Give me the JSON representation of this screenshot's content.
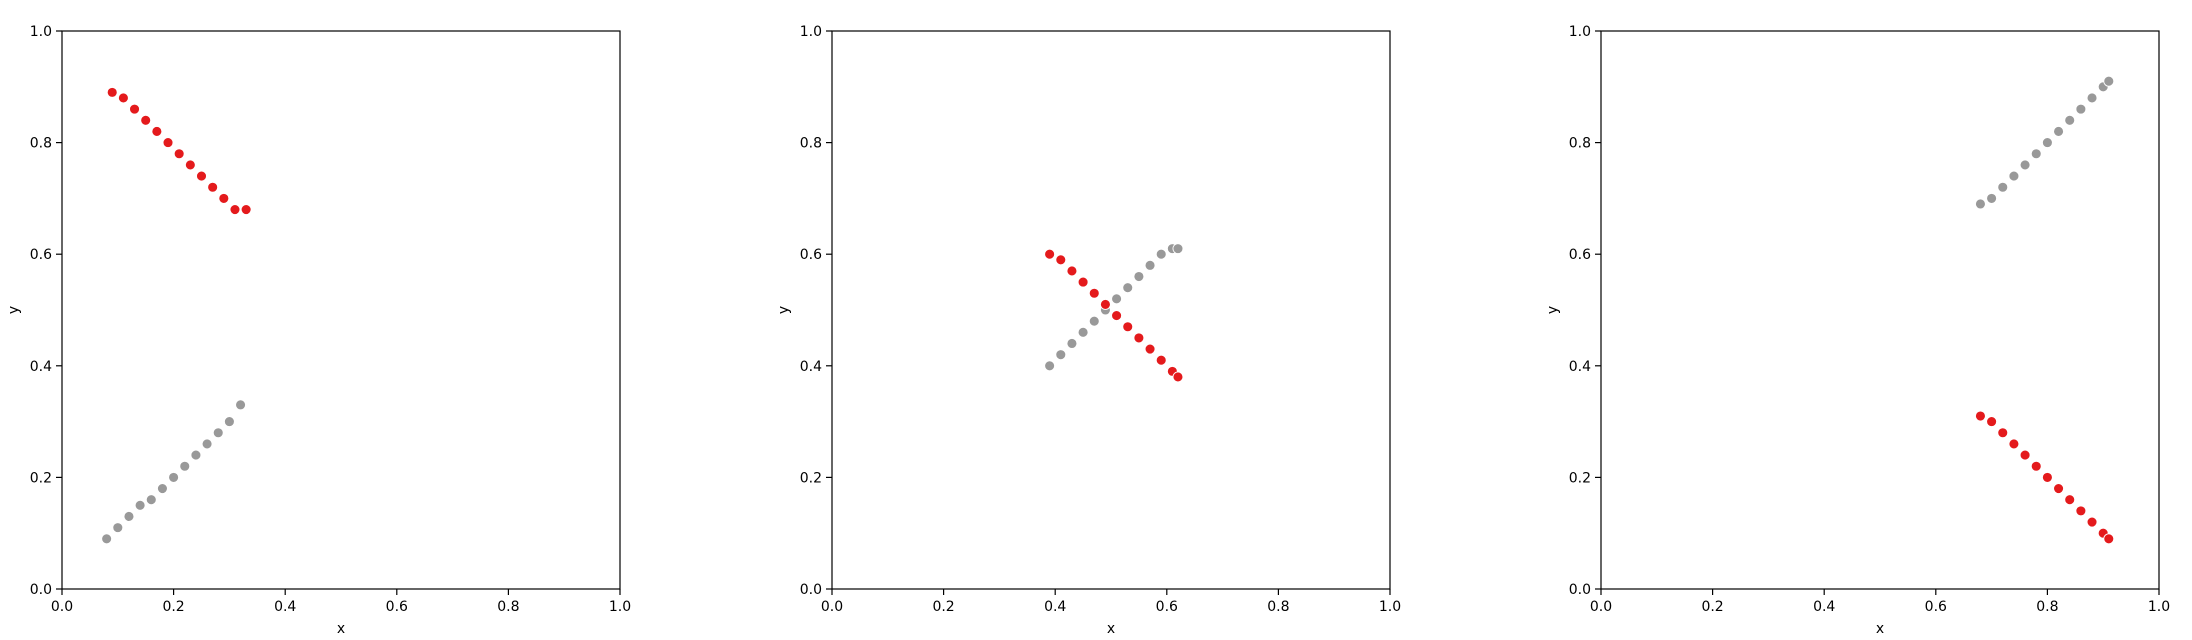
{
  "chart_data": [
    {
      "type": "scatter",
      "xlabel": "x",
      "ylabel": "y",
      "xlim": [
        0.0,
        1.0
      ],
      "ylim": [
        0.0,
        1.0
      ],
      "xticks": [
        "0.0",
        "0.2",
        "0.4",
        "0.6",
        "0.8",
        "1.0"
      ],
      "yticks": [
        "0.0",
        "0.2",
        "0.4",
        "0.6",
        "0.8",
        "1.0"
      ],
      "grid": false,
      "series": [
        {
          "color": "#999999",
          "x": [
            0.08,
            0.1,
            0.12,
            0.14,
            0.16,
            0.18,
            0.2,
            0.22,
            0.24,
            0.26,
            0.28,
            0.3,
            0.32
          ],
          "y": [
            0.09,
            0.11,
            0.13,
            0.15,
            0.16,
            0.18,
            0.2,
            0.22,
            0.24,
            0.26,
            0.28,
            0.3,
            0.33
          ]
        },
        {
          "color": "#e41a1c",
          "x": [
            0.09,
            0.11,
            0.13,
            0.15,
            0.17,
            0.19,
            0.21,
            0.23,
            0.25,
            0.27,
            0.29,
            0.31,
            0.33
          ],
          "y": [
            0.89,
            0.88,
            0.86,
            0.84,
            0.82,
            0.8,
            0.78,
            0.76,
            0.74,
            0.72,
            0.7,
            0.68,
            0.68
          ]
        }
      ]
    },
    {
      "type": "scatter",
      "xlabel": "x",
      "ylabel": "y",
      "xlim": [
        0.0,
        1.0
      ],
      "ylim": [
        0.0,
        1.0
      ],
      "xticks": [
        "0.0",
        "0.2",
        "0.4",
        "0.6",
        "0.8",
        "1.0"
      ],
      "yticks": [
        "0.0",
        "0.2",
        "0.4",
        "0.6",
        "0.8",
        "1.0"
      ],
      "grid": false,
      "series": [
        {
          "color": "#999999",
          "x": [
            0.39,
            0.41,
            0.43,
            0.45,
            0.47,
            0.49,
            0.51,
            0.53,
            0.55,
            0.57,
            0.59,
            0.61,
            0.62
          ],
          "y": [
            0.4,
            0.42,
            0.44,
            0.46,
            0.48,
            0.5,
            0.52,
            0.54,
            0.56,
            0.58,
            0.6,
            0.61,
            0.61
          ]
        },
        {
          "color": "#e41a1c",
          "x": [
            0.39,
            0.41,
            0.43,
            0.45,
            0.47,
            0.49,
            0.51,
            0.53,
            0.55,
            0.57,
            0.59,
            0.61,
            0.62
          ],
          "y": [
            0.6,
            0.59,
            0.57,
            0.55,
            0.53,
            0.51,
            0.49,
            0.47,
            0.45,
            0.43,
            0.41,
            0.39,
            0.38
          ]
        }
      ]
    },
    {
      "type": "scatter",
      "xlabel": "x",
      "ylabel": "y",
      "xlim": [
        0.0,
        1.0
      ],
      "ylim": [
        0.0,
        1.0
      ],
      "xticks": [
        "0.0",
        "0.2",
        "0.4",
        "0.6",
        "0.8",
        "1.0"
      ],
      "yticks": [
        "0.0",
        "0.2",
        "0.4",
        "0.6",
        "0.8",
        "1.0"
      ],
      "grid": false,
      "series": [
        {
          "color": "#999999",
          "x": [
            0.68,
            0.7,
            0.72,
            0.74,
            0.76,
            0.78,
            0.8,
            0.82,
            0.84,
            0.86,
            0.88,
            0.9,
            0.91
          ],
          "y": [
            0.69,
            0.7,
            0.72,
            0.74,
            0.76,
            0.78,
            0.8,
            0.82,
            0.84,
            0.86,
            0.88,
            0.9,
            0.91
          ]
        },
        {
          "color": "#e41a1c",
          "x": [
            0.68,
            0.7,
            0.72,
            0.74,
            0.76,
            0.78,
            0.8,
            0.82,
            0.84,
            0.86,
            0.88,
            0.9,
            0.91
          ],
          "y": [
            0.31,
            0.3,
            0.28,
            0.26,
            0.24,
            0.22,
            0.2,
            0.18,
            0.16,
            0.14,
            0.12,
            0.1,
            0.09
          ]
        }
      ]
    }
  ]
}
